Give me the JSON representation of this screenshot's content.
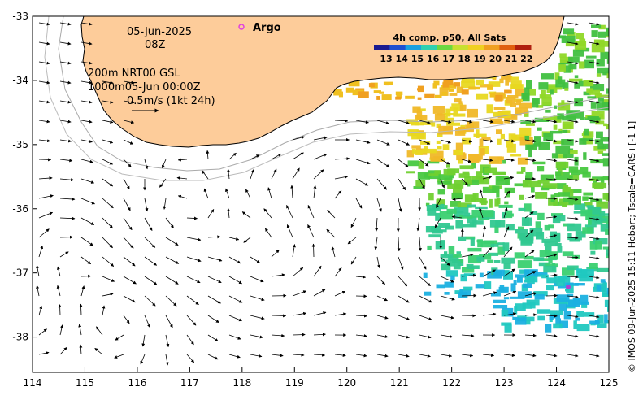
{
  "map": {
    "date": "05-Jun-2025",
    "time": "08Z",
    "info_line1": "200m   NRT00 GSL",
    "info_line2": "1000m05-Jun 00:00Z",
    "scale_label": "0.5m/s (1kt 24h)",
    "legend_argo": "Argo",
    "colorbar_title": "4h comp, p50, All Sats",
    "colorbar_ticks": [
      "13",
      "14",
      "15",
      "16",
      "17",
      "18",
      "19",
      "20",
      "21",
      "22"
    ],
    "colorbar_colors": [
      "#1a1a90",
      "#1f4fd0",
      "#1aa0e0",
      "#2fd0b0",
      "#6cd840",
      "#c8e030",
      "#f0d020",
      "#f0a020",
      "#e06010",
      "#b02010"
    ],
    "credit": "© IMOS 09-Jun-2025 15:11 Hobart; Tscale=CARS+[-1 1]",
    "colors": {
      "land": "#fdcc9a",
      "argo": "#e040e0"
    }
  },
  "chart_data": {
    "type": "map",
    "x_ticks": [
      "114",
      "115",
      "116",
      "117",
      "118",
      "119",
      "120",
      "121",
      "122",
      "123",
      "124",
      "125"
    ],
    "y_ticks": [
      "-33",
      "-34",
      "-35",
      "-36",
      "-37",
      "-38"
    ],
    "xlim": [
      114,
      125
    ],
    "ylim": [
      -38.55,
      -33
    ]
  }
}
